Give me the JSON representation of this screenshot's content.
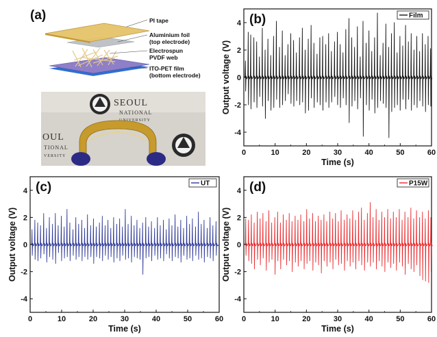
{
  "figure": {
    "panel_a": {
      "letter": "(a)",
      "diagram_labels": [
        [
          "PI tape"
        ],
        [
          "Aluminium foil",
          "(top electrode)"
        ],
        [
          "Electrospun",
          "PVDF web"
        ],
        [
          "ITO-PET film",
          "(bottom electrode)"
        ]
      ],
      "photo_text": {
        "seoul_top": "SEOUL",
        "national_top": "NATIONAL",
        "university_top": "UNIVERSITY",
        "oul_left": "OUL",
        "tional_left": "TIONAL",
        "versity_left": "VERSITY"
      },
      "colors": {
        "pi_tape": "#e6c46a",
        "aluminium": "#b9bcc2",
        "ito_pet": "#8f7fc9",
        "ito_edge": "#2f6fd0",
        "fibers": "#e2c98a",
        "photo_bg": "#d6d2cc",
        "film_gold": "#c79a2c",
        "glove": "#2b2b86"
      }
    }
  },
  "chart_data": [
    {
      "panel": "(b)",
      "type": "line",
      "xlabel": "Time (s)",
      "ylabel": "Output voltage (V)",
      "xlim": [
        0,
        60
      ],
      "ylim": [
        -5,
        5
      ],
      "x_ticks": [
        0,
        10,
        20,
        30,
        40,
        50,
        60
      ],
      "y_ticks": [
        -4,
        -2,
        0,
        2,
        4
      ],
      "legend": "Film",
      "color": "#111111",
      "peaks": [
        [
          0.5,
          1.2,
          -1.0
        ],
        [
          1.4,
          3.3,
          -2.0
        ],
        [
          2.2,
          3.1,
          -2.3
        ],
        [
          3.2,
          2.9,
          -1.8
        ],
        [
          4.1,
          2.6,
          -2.2
        ],
        [
          5.0,
          1.5,
          -1.4
        ],
        [
          5.9,
          3.6,
          -2.1
        ],
        [
          6.8,
          2.0,
          -3.0
        ],
        [
          7.7,
          2.8,
          -1.7
        ],
        [
          8.6,
          1.6,
          -2.4
        ],
        [
          9.5,
          3.0,
          -2.2
        ],
        [
          10.4,
          4.1,
          -1.6
        ],
        [
          11.4,
          2.2,
          -2.2
        ],
        [
          12.3,
          3.4,
          -2.0
        ],
        [
          13.2,
          1.6,
          -1.7
        ],
        [
          14.1,
          2.4,
          -1.2
        ],
        [
          15.0,
          3.2,
          -1.9
        ],
        [
          15.9,
          2.7,
          -2.1
        ],
        [
          16.8,
          1.8,
          -1.7
        ],
        [
          17.8,
          2.9,
          -2.0
        ],
        [
          18.7,
          3.6,
          -1.8
        ],
        [
          19.6,
          2.0,
          -2.6
        ],
        [
          20.6,
          2.8,
          -2.4
        ],
        [
          21.5,
          3.8,
          -1.5
        ],
        [
          22.4,
          2.5,
          -2.2
        ],
        [
          23.4,
          1.7,
          -1.8
        ],
        [
          24.3,
          2.9,
          -2.0
        ],
        [
          25.2,
          3.0,
          -2.4
        ],
        [
          26.2,
          2.4,
          -1.8
        ],
        [
          27.1,
          3.2,
          -2.2
        ],
        [
          28.0,
          1.9,
          -1.8
        ],
        [
          29.0,
          2.6,
          -1.4
        ],
        [
          29.9,
          3.3,
          -2.0
        ],
        [
          30.8,
          2.4,
          -2.2
        ],
        [
          31.7,
          1.8,
          -1.5
        ],
        [
          32.6,
          3.5,
          -2.0
        ],
        [
          33.6,
          4.3,
          -3.3
        ],
        [
          34.5,
          2.9,
          -2.1
        ],
        [
          35.4,
          2.2,
          -1.7
        ],
        [
          36.3,
          3.7,
          -2.3
        ],
        [
          37.2,
          1.5,
          -1.5
        ],
        [
          38.1,
          4.1,
          -4.3
        ],
        [
          39.1,
          2.5,
          -2.0
        ],
        [
          40.0,
          3.4,
          -2.4
        ],
        [
          40.9,
          1.9,
          -1.6
        ],
        [
          41.8,
          2.9,
          -2.6
        ],
        [
          42.7,
          4.7,
          -2.2
        ],
        [
          43.6,
          1.6,
          -1.7
        ],
        [
          44.5,
          2.5,
          -1.9
        ],
        [
          45.4,
          3.9,
          -2.2
        ],
        [
          46.3,
          2.2,
          -4.4
        ],
        [
          47.2,
          3.2,
          -2.5
        ],
        [
          48.1,
          4.0,
          -2.2
        ],
        [
          49.0,
          1.8,
          -2.0
        ],
        [
          49.9,
          3.0,
          -2.4
        ],
        [
          50.8,
          2.3,
          -1.6
        ],
        [
          51.7,
          3.8,
          -2.3
        ],
        [
          52.6,
          2.6,
          -1.6
        ],
        [
          53.5,
          3.2,
          -2.4
        ],
        [
          54.4,
          2.0,
          -2.0
        ],
        [
          55.3,
          3.0,
          -2.2
        ],
        [
          56.2,
          1.9,
          -1.7
        ],
        [
          57.1,
          3.2,
          -2.1
        ],
        [
          58.0,
          2.4,
          -2.5
        ],
        [
          58.9,
          3.0,
          -2.0
        ],
        [
          59.7,
          2.1,
          -2.1
        ]
      ]
    },
    {
      "panel": "(c)",
      "type": "line",
      "xlabel": "Time (s)",
      "ylabel": "Output voltage (V)",
      "xlim": [
        0,
        60
      ],
      "ylim": [
        -5,
        5
      ],
      "x_ticks": [
        0,
        10,
        20,
        30,
        40,
        50,
        60
      ],
      "y_ticks": [
        -4,
        -2,
        0,
        2,
        4
      ],
      "legend": "UT",
      "color": "#2e3a98",
      "peaks": [
        [
          0.6,
          1.1,
          -0.8
        ],
        [
          1.5,
          1.8,
          -1.1
        ],
        [
          2.4,
          1.6,
          -1.2
        ],
        [
          3.3,
          1.4,
          -1.0
        ],
        [
          4.3,
          2.3,
          -0.7
        ],
        [
          5.2,
          1.2,
          -1.3
        ],
        [
          6.1,
          2.0,
          -0.9
        ],
        [
          7.1,
          1.5,
          -1.1
        ],
        [
          8.0,
          2.3,
          -1.4
        ],
        [
          8.9,
          1.4,
          -0.6
        ],
        [
          9.9,
          2.1,
          -1.2
        ],
        [
          10.8,
          1.3,
          -1.0
        ],
        [
          11.7,
          2.6,
          -0.9
        ],
        [
          12.6,
          1.6,
          -1.2
        ],
        [
          13.6,
          1.1,
          -0.8
        ],
        [
          14.5,
          2.0,
          -1.1
        ],
        [
          15.4,
          1.5,
          -0.9
        ],
        [
          16.4,
          1.8,
          -1.2
        ],
        [
          17.3,
          1.2,
          -0.9
        ],
        [
          18.2,
          2.2,
          -1.1
        ],
        [
          19.2,
          1.4,
          -0.9
        ],
        [
          20.1,
          1.9,
          -1.4
        ],
        [
          21.0,
          1.3,
          -0.9
        ],
        [
          22.0,
          1.6,
          -1.0
        ],
        [
          22.9,
          2.1,
          -1.2
        ],
        [
          23.8,
          1.4,
          -0.8
        ],
        [
          24.7,
          1.8,
          -1.1
        ],
        [
          25.6,
          1.2,
          -0.9
        ],
        [
          26.5,
          2.0,
          -1.3
        ],
        [
          27.5,
          1.5,
          -1.0
        ],
        [
          28.4,
          1.9,
          -1.2
        ],
        [
          29.3,
          1.3,
          -0.8
        ],
        [
          30.2,
          2.6,
          -1.1
        ],
        [
          31.1,
          1.5,
          -1.0
        ],
        [
          32.1,
          2.1,
          -1.3
        ],
        [
          33.0,
          1.4,
          -0.9
        ],
        [
          33.9,
          1.8,
          -1.0
        ],
        [
          34.8,
          1.2,
          -1.1
        ],
        [
          35.7,
          1.6,
          -2.2
        ],
        [
          36.7,
          2.0,
          -1.0
        ],
        [
          37.6,
          1.3,
          -0.9
        ],
        [
          38.5,
          1.7,
          -1.2
        ],
        [
          39.5,
          1.2,
          -0.8
        ],
        [
          40.4,
          2.0,
          -1.1
        ],
        [
          41.3,
          1.4,
          -1.0
        ],
        [
          42.3,
          1.8,
          -1.2
        ],
        [
          43.2,
          1.1,
          -0.7
        ],
        [
          44.1,
          1.9,
          -1.0
        ],
        [
          45.0,
          1.4,
          -1.2
        ],
        [
          46.0,
          2.2,
          -0.9
        ],
        [
          46.9,
          1.3,
          -1.0
        ],
        [
          47.8,
          1.8,
          -1.3
        ],
        [
          48.7,
          1.2,
          -0.8
        ],
        [
          49.7,
          2.1,
          -1.1
        ],
        [
          50.6,
          1.5,
          -1.0
        ],
        [
          51.5,
          1.9,
          -1.2
        ],
        [
          52.5,
          1.3,
          -0.8
        ],
        [
          53.4,
          2.4,
          -1.1
        ],
        [
          54.3,
          1.5,
          -1.0
        ],
        [
          55.2,
          1.8,
          -1.3
        ],
        [
          56.2,
          1.2,
          -0.9
        ],
        [
          57.1,
          2.0,
          -1.0
        ],
        [
          58.0,
          1.4,
          -1.2
        ],
        [
          59.0,
          1.7,
          -0.8
        ]
      ]
    },
    {
      "panel": "(d)",
      "type": "line",
      "xlabel": "Time (s)",
      "ylabel": "Output voltage (V)",
      "xlim": [
        0,
        60
      ],
      "ylim": [
        -5,
        5
      ],
      "x_ticks": [
        0,
        10,
        20,
        30,
        40,
        50,
        60
      ],
      "y_ticks": [
        -4,
        -2,
        0,
        2,
        4
      ],
      "legend": "P15W",
      "color": "#e8292d",
      "peaks": [
        [
          0.6,
          1.9,
          -0.8
        ],
        [
          1.5,
          1.8,
          -1.2
        ],
        [
          2.4,
          2.2,
          -1.4
        ],
        [
          3.3,
          1.6,
          -1.8
        ],
        [
          4.3,
          2.4,
          -1.1
        ],
        [
          5.2,
          1.9,
          -1.5
        ],
        [
          6.1,
          2.3,
          -1.0
        ],
        [
          7.1,
          1.7,
          -1.9
        ],
        [
          8.0,
          2.5,
          -1.3
        ],
        [
          8.9,
          1.6,
          -1.1
        ],
        [
          9.9,
          2.0,
          -2.2
        ],
        [
          10.8,
          2.4,
          -1.2
        ],
        [
          11.7,
          1.6,
          -1.8
        ],
        [
          12.6,
          2.2,
          -1.1
        ],
        [
          13.6,
          1.8,
          -1.5
        ],
        [
          14.5,
          2.3,
          -1.2
        ],
        [
          15.4,
          1.7,
          -2.0
        ],
        [
          16.4,
          2.1,
          -1.3
        ],
        [
          17.3,
          1.8,
          -1.6
        ],
        [
          18.2,
          2.2,
          -1.2
        ],
        [
          19.2,
          1.7,
          -1.8
        ],
        [
          20.1,
          2.6,
          -1.4
        ],
        [
          21.0,
          1.9,
          -1.2
        ],
        [
          22.0,
          2.3,
          -1.9
        ],
        [
          22.9,
          1.7,
          -1.3
        ],
        [
          23.8,
          2.1,
          -1.5
        ],
        [
          24.7,
          1.8,
          -2.1
        ],
        [
          25.6,
          2.2,
          -1.2
        ],
        [
          26.5,
          1.7,
          -1.6
        ],
        [
          27.5,
          2.4,
          -1.3
        ],
        [
          28.4,
          1.9,
          -1.8
        ],
        [
          29.3,
          2.3,
          -1.1
        ],
        [
          30.2,
          1.7,
          -1.5
        ],
        [
          31.1,
          2.5,
          -1.4
        ],
        [
          32.1,
          1.8,
          -1.9
        ],
        [
          33.0,
          2.2,
          -1.2
        ],
        [
          33.9,
          1.9,
          -1.6
        ],
        [
          34.8,
          2.5,
          -1.3
        ],
        [
          35.7,
          1.8,
          -1.8
        ],
        [
          36.7,
          2.4,
          -1.2
        ],
        [
          37.6,
          2.7,
          -1.5
        ],
        [
          38.5,
          1.8,
          -1.9
        ],
        [
          39.5,
          2.3,
          -1.3
        ],
        [
          40.4,
          3.1,
          -1.6
        ],
        [
          41.3,
          2.0,
          -1.3
        ],
        [
          42.3,
          2.6,
          -1.8
        ],
        [
          43.2,
          1.8,
          -1.2
        ],
        [
          44.1,
          2.4,
          -1.6
        ],
        [
          45.0,
          2.0,
          -2.0
        ],
        [
          46.0,
          2.6,
          -1.3
        ],
        [
          46.9,
          1.9,
          -1.7
        ],
        [
          47.8,
          2.4,
          -1.4
        ],
        [
          48.7,
          2.0,
          -1.9
        ],
        [
          49.7,
          2.6,
          -1.3
        ],
        [
          50.6,
          1.8,
          -1.6
        ],
        [
          51.5,
          2.4,
          -2.2
        ],
        [
          52.5,
          2.0,
          -1.4
        ],
        [
          53.4,
          2.7,
          -1.8
        ],
        [
          54.3,
          1.9,
          -2.0
        ],
        [
          55.2,
          2.5,
          -1.5
        ],
        [
          56.2,
          2.0,
          -2.3
        ],
        [
          57.1,
          2.4,
          -2.6
        ],
        [
          58.0,
          1.9,
          -2.7
        ],
        [
          59.0,
          2.5,
          -2.8
        ],
        [
          59.8,
          2.0,
          -2.0
        ]
      ]
    }
  ]
}
